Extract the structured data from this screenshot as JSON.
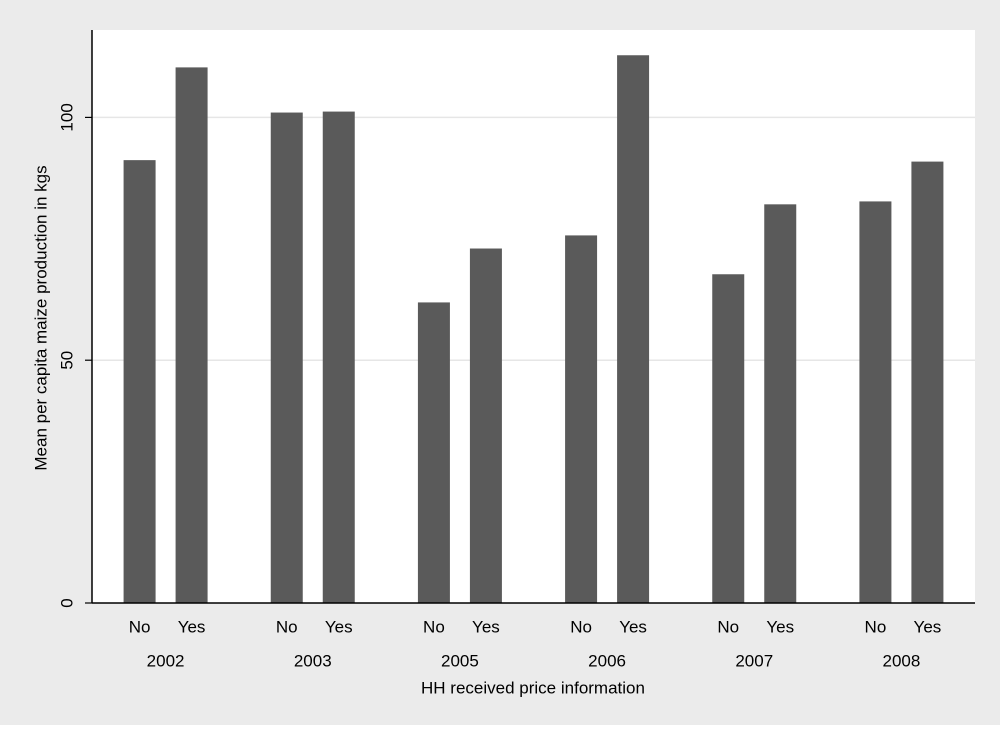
{
  "chart_data": {
    "type": "bar",
    "y_label": "Mean per capita maize production in kgs",
    "x_label": "HH received price information",
    "categories": [
      "2002",
      "2003",
      "2005",
      "2006",
      "2007",
      "2008"
    ],
    "series": [
      {
        "name": "No",
        "color": "#5a5a5a",
        "values": [
          91.2,
          101.0,
          61.9,
          75.7,
          67.7,
          82.7
        ]
      },
      {
        "name": "Yes",
        "color": "#5a5a5a",
        "values": [
          110.3,
          101.2,
          73.0,
          112.8,
          82.1,
          90.9
        ]
      }
    ],
    "ylim": [
      0,
      118
    ],
    "yticks": [
      0,
      50,
      100
    ],
    "grid": true
  }
}
